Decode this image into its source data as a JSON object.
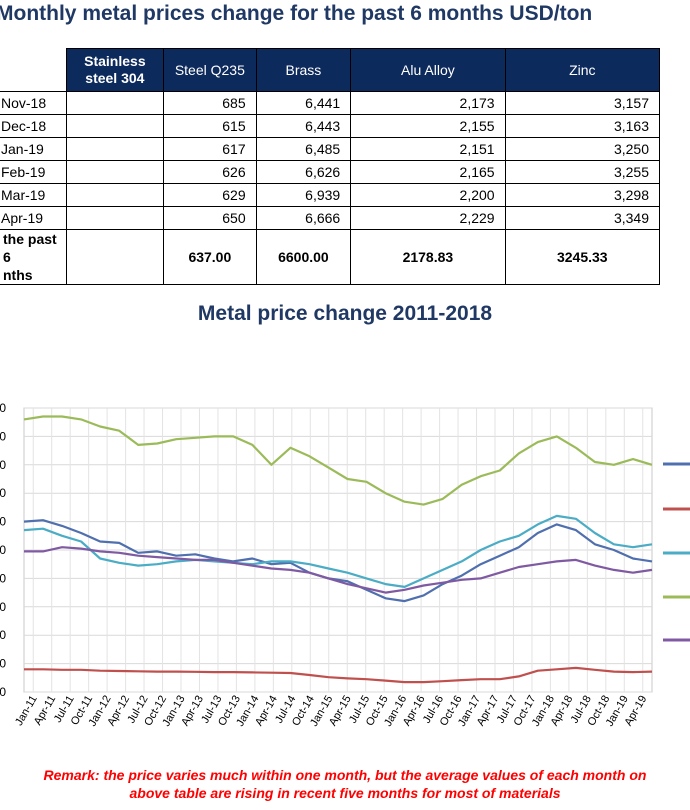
{
  "title": "Monthly metal prices change for the past 6 months USD/ton",
  "table": {
    "headers": [
      "Stainless steel 304",
      "Steel Q235",
      "Brass",
      "Alu Alloy",
      "Zinc"
    ],
    "rows": [
      {
        "month": "Nov-18",
        "values": [
          "",
          "685",
          "6,441",
          "2,173",
          "3,157"
        ]
      },
      {
        "month": "Dec-18",
        "values": [
          "",
          "615",
          "6,443",
          "2,155",
          "3,163"
        ]
      },
      {
        "month": "Jan-19",
        "values": [
          "",
          "617",
          "6,485",
          "2,151",
          "3,250"
        ]
      },
      {
        "month": "Feb-19",
        "values": [
          "",
          "626",
          "6,626",
          "2,165",
          "3,255"
        ]
      },
      {
        "month": "Mar-19",
        "values": [
          "",
          "629",
          "6,939",
          "2,200",
          "3,298"
        ]
      },
      {
        "month": "Apr-19",
        "values": [
          "",
          "650",
          "6,666",
          "2,229",
          "3,349"
        ]
      }
    ],
    "avg_label_line1": "the past 6",
    "avg_label_line2": "nths",
    "avg_values": [
      "",
      "637.00",
      "6600.00",
      "2178.83",
      "3245.33"
    ]
  },
  "chart_title": "Metal price change 2011-2018",
  "chart_data": {
    "type": "line",
    "title": "Metal price change 2011-2018",
    "xlabel": "",
    "ylabel": "",
    "x_tick_labels": [
      "Jan-11",
      "Apr-11",
      "Jul-11",
      "Oct-11",
      "Jan-12",
      "Apr-12",
      "Jul-12",
      "Oct-12",
      "Jan-13",
      "Apr-13",
      "Jul-13",
      "Oct-13",
      "Jan-14",
      "Apr-14",
      "Jul-14",
      "Oct-14",
      "Jan-15",
      "Apr-15",
      "Jul-15",
      "Oct-15",
      "Jan-16",
      "Apr-16",
      "Jul-16",
      "Oct-16",
      "Jan-17",
      "Apr-17",
      "Jul-17",
      "Oct-17",
      "Jan-18",
      "Apr-18",
      "Jul-18",
      "Oct-18",
      "Jan-19",
      "Apr-19"
    ],
    "y_tick_labels": [
      "0",
      "0",
      "0",
      "0",
      "0",
      "0",
      "0",
      "0",
      "0",
      "0",
      "0"
    ],
    "ylim": [
      0,
      10
    ],
    "grid": true,
    "legend_position": "right",
    "series": [
      {
        "name": "",
        "color": "#4f6fae",
        "values": [
          6.0,
          6.05,
          5.85,
          5.6,
          5.3,
          5.25,
          4.9,
          4.95,
          4.8,
          4.85,
          4.7,
          4.6,
          4.7,
          4.5,
          4.55,
          4.2,
          4.0,
          3.9,
          3.6,
          3.3,
          3.2,
          3.4,
          3.8,
          4.1,
          4.5,
          4.8,
          5.1,
          5.6,
          5.9,
          5.7,
          5.2,
          5.0,
          4.7,
          4.6
        ]
      },
      {
        "name": "",
        "color": "#c0504d",
        "values": [
          0.8,
          0.8,
          0.78,
          0.78,
          0.75,
          0.74,
          0.73,
          0.72,
          0.72,
          0.71,
          0.7,
          0.7,
          0.69,
          0.68,
          0.67,
          0.6,
          0.52,
          0.48,
          0.45,
          0.4,
          0.35,
          0.35,
          0.38,
          0.42,
          0.45,
          0.45,
          0.55,
          0.75,
          0.8,
          0.85,
          0.78,
          0.72,
          0.7,
          0.72
        ]
      },
      {
        "name": "",
        "color": "#4bacc6",
        "values": [
          5.7,
          5.75,
          5.5,
          5.3,
          4.7,
          4.55,
          4.45,
          4.5,
          4.6,
          4.65,
          4.6,
          4.55,
          4.5,
          4.6,
          4.6,
          4.5,
          4.35,
          4.2,
          4.0,
          3.8,
          3.7,
          4.0,
          4.3,
          4.6,
          5.0,
          5.3,
          5.5,
          5.9,
          6.2,
          6.1,
          5.6,
          5.2,
          5.1,
          5.2
        ]
      },
      {
        "name": "",
        "color": "#9bbb59",
        "values": [
          9.6,
          9.7,
          9.7,
          9.6,
          9.35,
          9.2,
          8.7,
          8.75,
          8.9,
          8.95,
          9.0,
          9.0,
          8.7,
          8.0,
          8.6,
          8.3,
          7.9,
          7.5,
          7.4,
          7.0,
          6.7,
          6.6,
          6.8,
          7.3,
          7.6,
          7.8,
          8.4,
          8.8,
          9.0,
          8.6,
          8.1,
          8.0,
          8.2,
          8.0
        ]
      },
      {
        "name": "",
        "color": "#7f5aa2",
        "values": [
          4.95,
          4.95,
          5.1,
          5.05,
          4.95,
          4.9,
          4.8,
          4.75,
          4.7,
          4.65,
          4.65,
          4.55,
          4.45,
          4.35,
          4.3,
          4.2,
          4.0,
          3.8,
          3.65,
          3.5,
          3.6,
          3.75,
          3.85,
          3.95,
          4.0,
          4.2,
          4.4,
          4.5,
          4.6,
          4.65,
          4.45,
          4.3,
          4.2,
          4.3
        ]
      }
    ]
  },
  "remark_line1": "Remark: the price varies much within one month, but the average values of each month on",
  "remark_line2": "above table are rising in recent five months for most of materials"
}
